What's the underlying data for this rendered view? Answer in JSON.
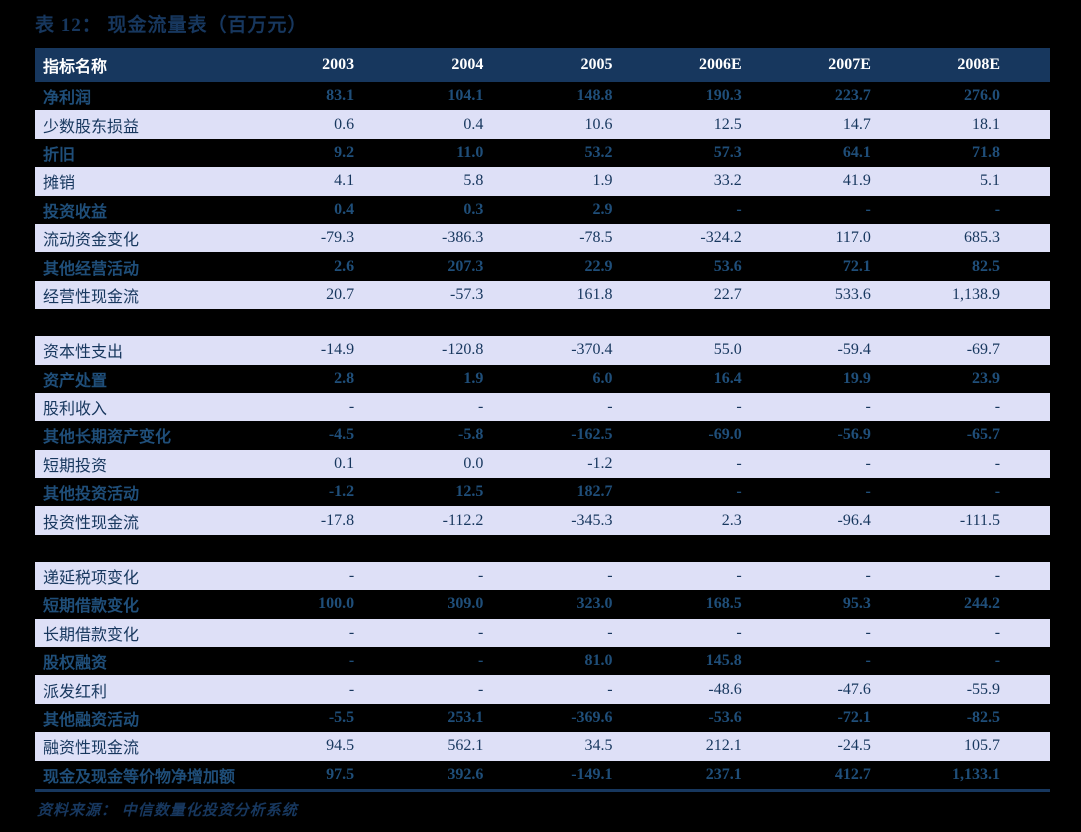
{
  "title": "表 12： 现金流量表（百万元）",
  "source": "资料来源： 中信数量化投资分析系统",
  "colors": {
    "page_bg": "#000000",
    "header_bg": "#17375e",
    "header_text": "#ffffff",
    "row_light_bg": "#dee0f7",
    "row_dark_bg": "#000000",
    "row_light_text": "#17375e",
    "row_dark_text": "#1f4e79",
    "rule": "#17375e"
  },
  "table": {
    "columns": [
      "指标名称",
      "2003",
      "2004",
      "2005",
      "2006E",
      "2007E",
      "2008E"
    ],
    "sections": [
      {
        "first_row_shade": "dark",
        "rows": [
          {
            "label": "净利润",
            "values": [
              "83.1",
              "104.1",
              "148.8",
              "190.3",
              "223.7",
              "276.0"
            ]
          },
          {
            "label": "少数股东损益",
            "values": [
              "0.6",
              "0.4",
              "10.6",
              "12.5",
              "14.7",
              "18.1"
            ]
          },
          {
            "label": "折旧",
            "values": [
              "9.2",
              "11.0",
              "53.2",
              "57.3",
              "64.1",
              "71.8"
            ]
          },
          {
            "label": "摊销",
            "values": [
              "4.1",
              "5.8",
              "1.9",
              "33.2",
              "41.9",
              "5.1"
            ]
          },
          {
            "label": "投资收益",
            "values": [
              "0.4",
              "0.3",
              "2.9",
              "-",
              "-",
              "-"
            ]
          },
          {
            "label": "流动资金变化",
            "values": [
              "-79.3",
              "-386.3",
              "-78.5",
              "-324.2",
              "117.0",
              "685.3"
            ]
          },
          {
            "label": "其他经营活动",
            "values": [
              "2.6",
              "207.3",
              "22.9",
              "53.6",
              "72.1",
              "82.5"
            ]
          },
          {
            "label": "经营性现金流",
            "values": [
              "20.7",
              "-57.3",
              "161.8",
              "22.7",
              "533.6",
              "1,138.9"
            ]
          }
        ]
      },
      {
        "first_row_shade": "light",
        "rows": [
          {
            "label": "资本性支出",
            "values": [
              "-14.9",
              "-120.8",
              "-370.4",
              "55.0",
              "-59.4",
              "-69.7"
            ]
          },
          {
            "label": "资产处置",
            "values": [
              "2.8",
              "1.9",
              "6.0",
              "16.4",
              "19.9",
              "23.9"
            ]
          },
          {
            "label": "股利收入",
            "values": [
              "-",
              "-",
              "-",
              "-",
              "-",
              "-"
            ]
          },
          {
            "label": "其他长期资产变化",
            "values": [
              "-4.5",
              "-5.8",
              "-162.5",
              "-69.0",
              "-56.9",
              "-65.7"
            ]
          },
          {
            "label": "短期投资",
            "values": [
              "0.1",
              "0.0",
              "-1.2",
              "-",
              "-",
              "-"
            ]
          },
          {
            "label": "其他投资活动",
            "values": [
              "-1.2",
              "12.5",
              "182.7",
              "-",
              "-",
              "-"
            ]
          },
          {
            "label": "投资性现金流",
            "values": [
              "-17.8",
              "-112.2",
              "-345.3",
              "2.3",
              "-96.4",
              "-111.5"
            ]
          }
        ]
      },
      {
        "first_row_shade": "light",
        "rows": [
          {
            "label": "递延税项变化",
            "values": [
              "-",
              "-",
              "-",
              "-",
              "-",
              "-"
            ]
          },
          {
            "label": "短期借款变化",
            "values": [
              "100.0",
              "309.0",
              "323.0",
              "168.5",
              "95.3",
              "244.2"
            ]
          },
          {
            "label": "长期借款变化",
            "values": [
              "-",
              "-",
              "-",
              "-",
              "-",
              "-"
            ]
          },
          {
            "label": "股权融资",
            "values": [
              "-",
              "-",
              "81.0",
              "145.8",
              "-",
              "-"
            ]
          },
          {
            "label": "派发红利",
            "values": [
              "-",
              "-",
              "-",
              "-48.6",
              "-47.6",
              "-55.9"
            ]
          },
          {
            "label": "其他融资活动",
            "values": [
              "-5.5",
              "253.1",
              "-369.6",
              "-53.6",
              "-72.1",
              "-82.5"
            ]
          },
          {
            "label": "融资性现金流",
            "values": [
              "94.5",
              "562.1",
              "34.5",
              "212.1",
              "-24.5",
              "105.7"
            ]
          },
          {
            "label": "现金及现金等价物净增加额",
            "values": [
              "97.5",
              "392.6",
              "-149.1",
              "237.1",
              "412.7",
              "1,133.1"
            ]
          }
        ]
      }
    ]
  }
}
